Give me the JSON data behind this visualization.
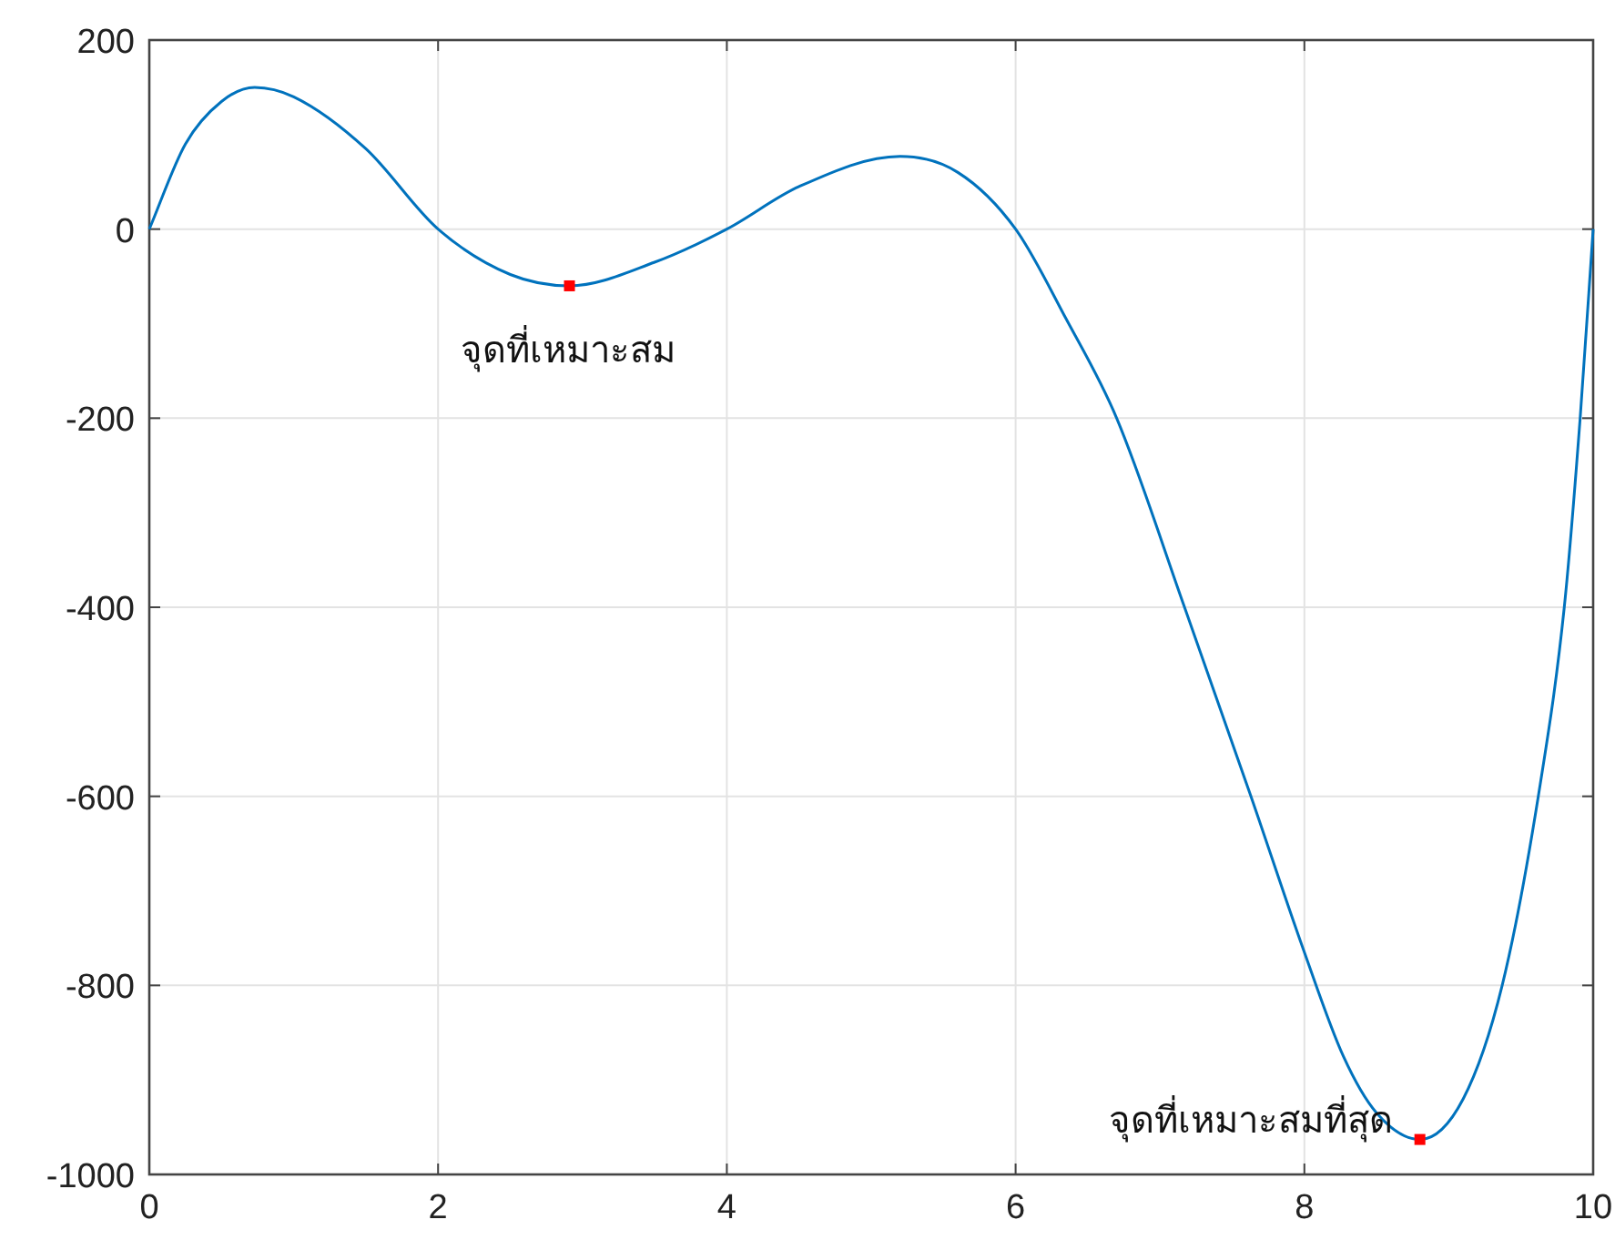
{
  "chart_data": {
    "type": "line",
    "xlim": [
      0,
      10
    ],
    "ylim": [
      -1000,
      200
    ],
    "xticks": [
      0,
      2,
      4,
      6,
      8,
      10
    ],
    "yticks": [
      -1000,
      -800,
      -600,
      -400,
      -200,
      0,
      200
    ],
    "grid": true,
    "series": [
      {
        "color": "#0072bd",
        "x": [
          0,
          0.25,
          0.5,
          0.73,
          1.0,
          1.5,
          2.0,
          2.5,
          2.91,
          3.5,
          4.0,
          4.5,
          5.2,
          5.6,
          6.0,
          6.35,
          6.7,
          7.17,
          7.63,
          8.0,
          8.27,
          8.5,
          8.8,
          9.1,
          9.37,
          9.62,
          9.8,
          9.91,
          10
        ],
        "values": [
          0,
          90,
          135,
          150,
          140,
          85,
          0,
          -48,
          -60,
          -35,
          0,
          45,
          77,
          60,
          0,
          -95,
          -200,
          -400,
          -600,
          -765,
          -875,
          -935,
          -963,
          -920,
          -800,
          -600,
          -400,
          -200,
          0
        ]
      },
      {
        "type": "scatter",
        "color": "#ff0000",
        "marker": "square",
        "x": [
          2.91,
          8.8
        ],
        "values": [
          -60,
          -963
        ]
      }
    ],
    "annotations": [
      {
        "text": "จุดที่เหมาะสม",
        "x": 2.91,
        "y": -60
      },
      {
        "text": "จุดที่เหมาะสมที่สุด",
        "x": 8.8,
        "y": -963
      }
    ]
  }
}
